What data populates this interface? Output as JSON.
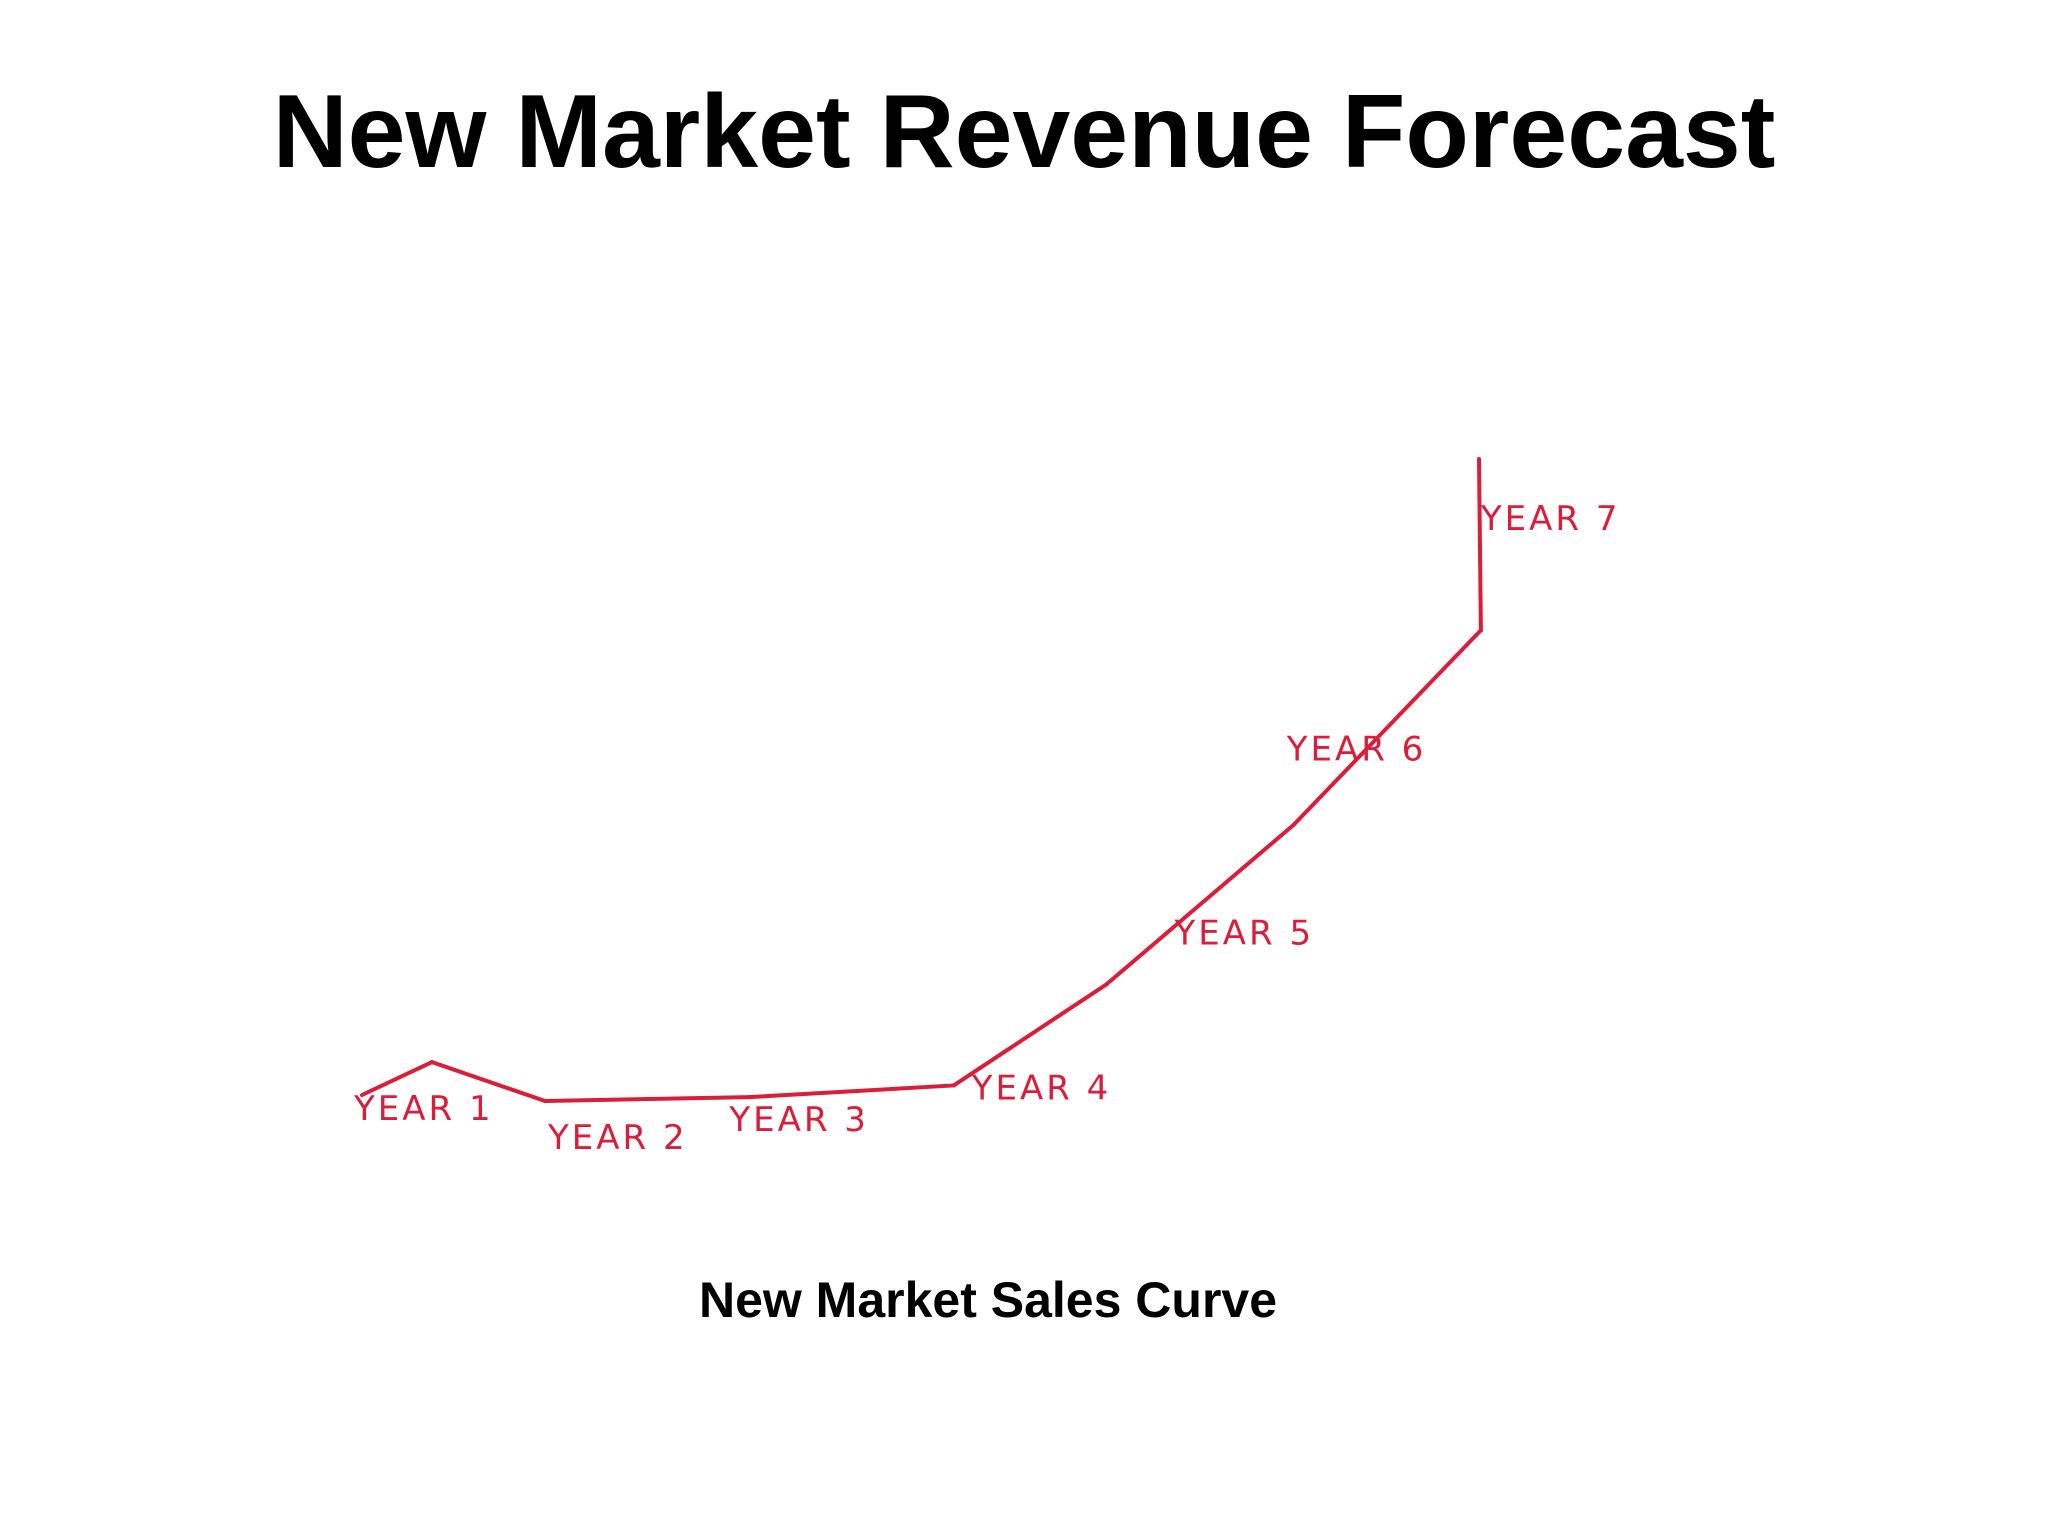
{
  "slide": {
    "title": "New Market Revenue Forecast",
    "caption": "New Market Sales Curve"
  },
  "chart_data": {
    "type": "line",
    "title": "",
    "xlabel": "",
    "ylabel": "",
    "grid": false,
    "legend": "none",
    "axes_visible": false,
    "line_color": "#d81e3a",
    "categories": [
      "YEAR 1",
      "YEAR 2",
      "YEAR 3",
      "YEAR 4",
      "YEAR 5",
      "YEAR 6",
      "YEAR 7"
    ],
    "series": [
      {
        "values": [
          10,
          0,
          1,
          4,
          30,
          71,
          121
        ]
      }
    ],
    "ylim": [
      0,
      165
    ],
    "notes": "Unlabeled hand-drawn curve; values are relative estimates (no y-axis printed)."
  }
}
